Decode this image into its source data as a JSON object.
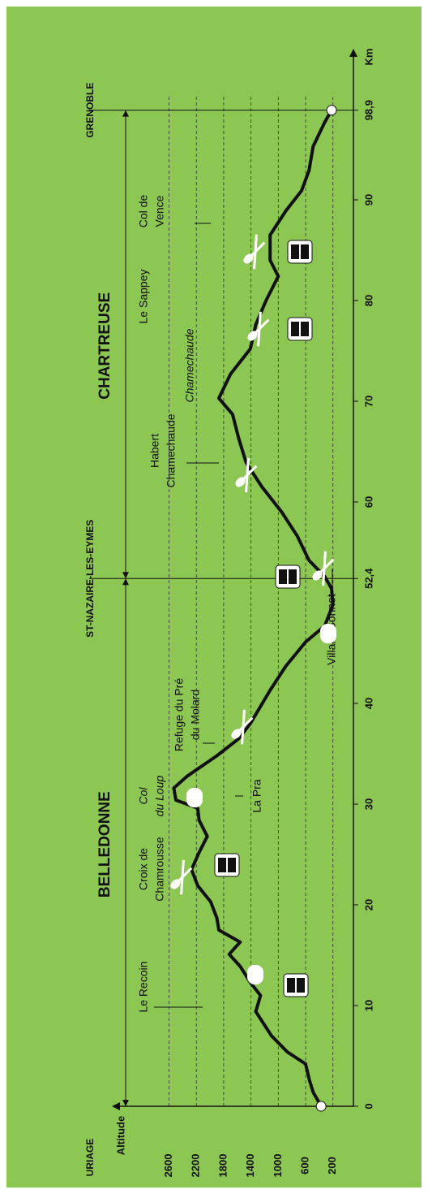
{
  "chart_data": {
    "type": "line",
    "x_label": "Km",
    "y_label": "Altitude",
    "x": [
      0,
      1.4,
      2.6,
      4.2,
      5.4,
      7,
      9.4,
      11,
      12.3,
      13.9,
      15.1,
      16.3,
      17.5,
      18.7,
      20.3,
      21.9,
      23.5,
      25.2,
      26.8,
      28.4,
      29.6,
      30.4,
      31.6,
      32.8,
      34.8,
      36.5,
      38,
      39.7,
      41.3,
      43.7,
      46.1,
      47.7,
      49.8,
      51.4,
      52.6,
      54.2,
      56.6,
      59,
      61.5,
      63.9,
      66.3,
      68.7,
      70.3,
      72.7,
      75.2,
      77.6,
      80,
      82.4,
      84,
      86.5,
      88.9,
      90.9,
      92.9,
      95.3,
      97.7,
      98.9
    ],
    "values": [
      373,
      490,
      545,
      600,
      870,
      1100,
      1330,
      1260,
      1410,
      1560,
      1720,
      1560,
      1870,
      1900,
      1990,
      2180,
      2270,
      2160,
      2040,
      2160,
      2180,
      2500,
      2530,
      2330,
      1900,
      1580,
      1410,
      1260,
      1120,
      890,
      600,
      320,
      200,
      220,
      320,
      550,
      720,
      950,
      1240,
      1470,
      1580,
      1670,
      1870,
      1700,
      1410,
      1330,
      1180,
      1000,
      1120,
      1120,
      890,
      660,
      550,
      490,
      320,
      220
    ],
    "color": "#111111",
    "xlim": [
      0,
      102
    ],
    "ylim": [
      -100,
      3200
    ],
    "xticks": [
      0,
      10,
      20,
      30,
      40,
      {
        "value": 52.4,
        "label": "52,4"
      },
      60,
      70,
      80,
      90,
      {
        "value": 98.9,
        "label": "98,9"
      }
    ],
    "yticks": [
      200,
      600,
      1000,
      1400,
      1800,
      2200,
      2600
    ],
    "grid": true,
    "endpoints": [
      "URIAGE",
      "ST-NAZAIRE-LES-EYMES",
      "GRENOBLE"
    ],
    "regions": [
      "BELLEDONNE",
      "CHARTREUSE"
    ],
    "annotations": [
      [
        "Le Recoin"
      ],
      [
        "Croix de",
        "Chamrousse"
      ],
      [
        "Col",
        "du Loup"
      ],
      [
        "La Pra"
      ],
      [
        "Refuge du Pré",
        "du Molard"
      ],
      [
        "Villard-Bonnot"
      ],
      [
        "Habert",
        "Chamechaude"
      ],
      [
        "Chamechaude"
      ],
      [
        "Le Sappey"
      ],
      [
        "Col de",
        "Vence"
      ]
    ]
  }
}
